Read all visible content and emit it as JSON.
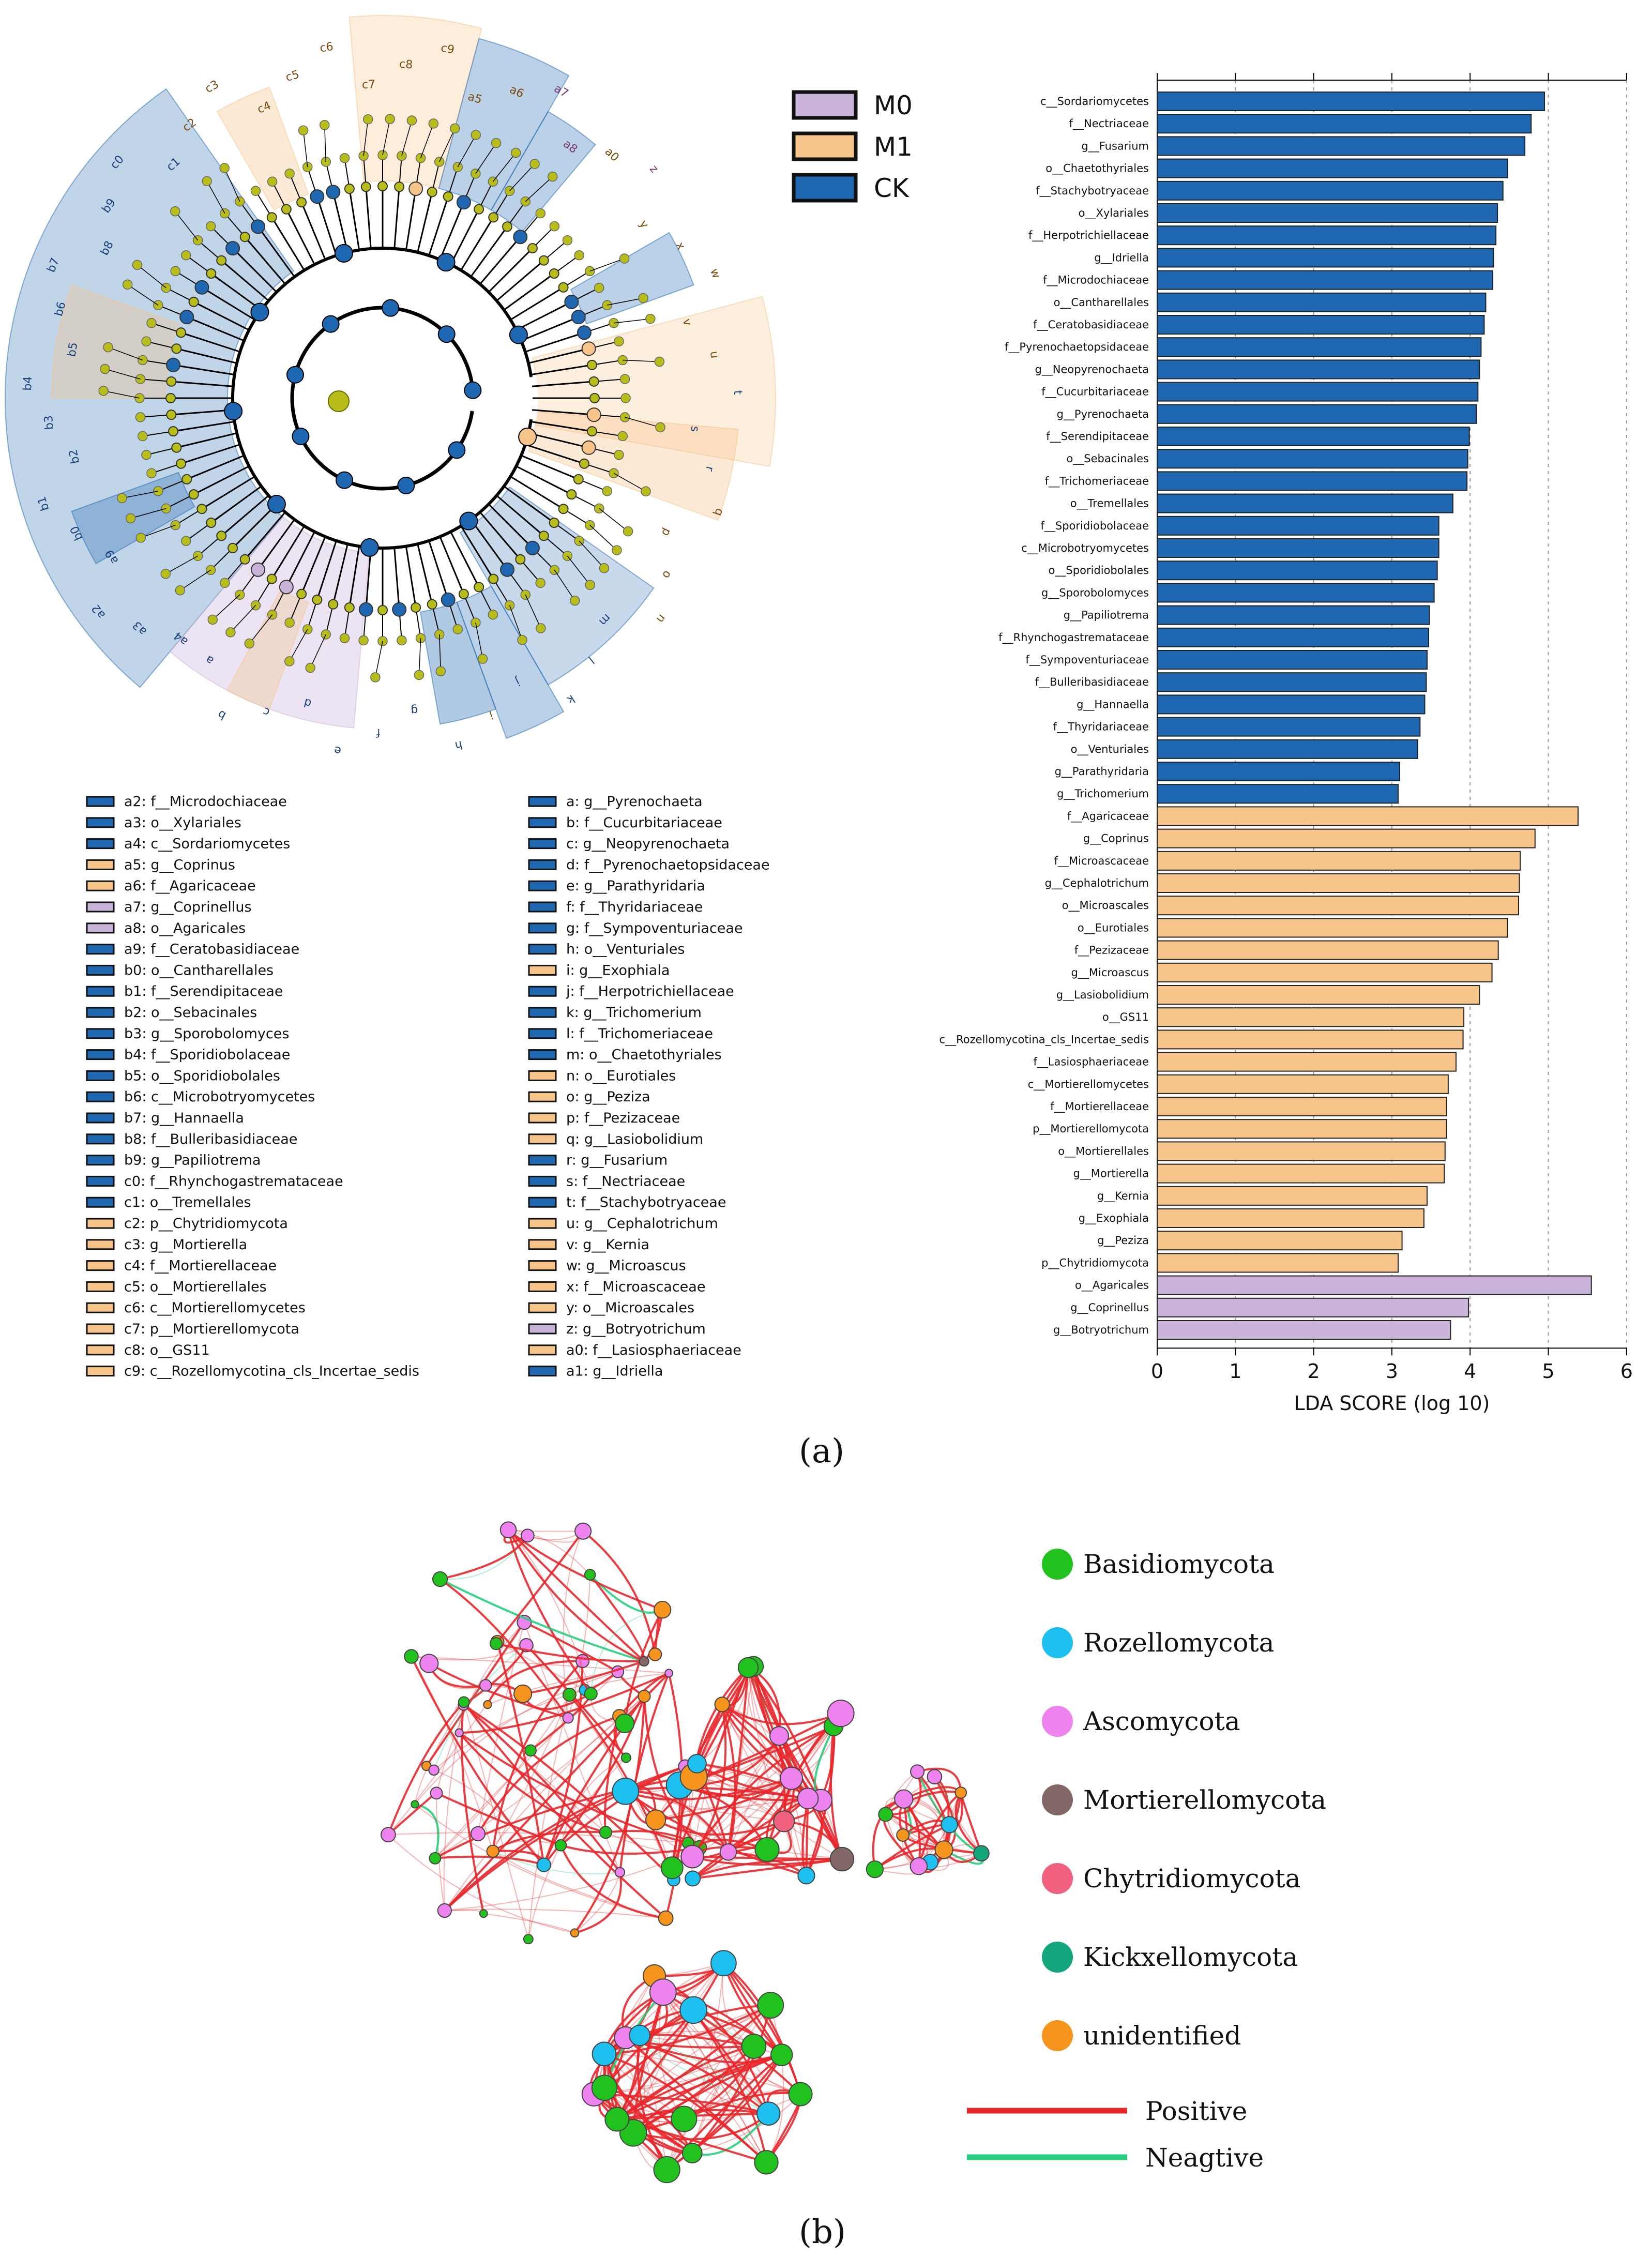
{
  "colors": {
    "M0": "#c9b3d9",
    "M1": "#f7c489",
    "CK": "#1f67b0",
    "node": "#b8bd1a"
  },
  "panel_a": {
    "caption": "(a)",
    "legend_groups": [
      {
        "key": "M0",
        "label": "M0"
      },
      {
        "key": "M1",
        "label": "M1"
      },
      {
        "key": "CK",
        "label": "CK"
      }
    ],
    "cladogram_legend_left": [
      {
        "label": "a2: f__Microdochiaceae",
        "group": "CK"
      },
      {
        "label": "a3: o__Xylariales",
        "group": "CK"
      },
      {
        "label": "a4: c__Sordariomycetes",
        "group": "CK"
      },
      {
        "label": "a5: g__Coprinus",
        "group": "M1"
      },
      {
        "label": "a6: f__Agaricaceae",
        "group": "M1"
      },
      {
        "label": "a7: g__Coprinellus",
        "group": "M0"
      },
      {
        "label": "a8: o__Agaricales",
        "group": "M0"
      },
      {
        "label": "a9: f__Ceratobasidiaceae",
        "group": "CK"
      },
      {
        "label": "b0: o__Cantharellales",
        "group": "CK"
      },
      {
        "label": "b1: f__Serendipitaceae",
        "group": "CK"
      },
      {
        "label": "b2: o__Sebacinales",
        "group": "CK"
      },
      {
        "label": "b3: g__Sporobolomyces",
        "group": "CK"
      },
      {
        "label": "b4: f__Sporidiobolaceae",
        "group": "CK"
      },
      {
        "label": "b5: o__Sporidiobolales",
        "group": "CK"
      },
      {
        "label": "b6: c__Microbotryomycetes",
        "group": "CK"
      },
      {
        "label": "b7: g__Hannaella",
        "group": "CK"
      },
      {
        "label": "b8: f__Bulleribasidiaceae",
        "group": "CK"
      },
      {
        "label": "b9: g__Papiliotrema",
        "group": "CK"
      },
      {
        "label": "c0: f__Rhynchogastremataceae",
        "group": "CK"
      },
      {
        "label": "c1: o__Tremellales",
        "group": "CK"
      },
      {
        "label": "c2: p__Chytridiomycota",
        "group": "M1"
      },
      {
        "label": "c3: g__Mortierella",
        "group": "M1"
      },
      {
        "label": "c4: f__Mortierellaceae",
        "group": "M1"
      },
      {
        "label": "c5: o__Mortierellales",
        "group": "M1"
      },
      {
        "label": "c6: c__Mortierellomycetes",
        "group": "M1"
      },
      {
        "label": "c7: p__Mortierellomycota",
        "group": "M1"
      },
      {
        "label": "c8: o__GS11",
        "group": "M1"
      },
      {
        "label": "c9: c__Rozellomycotina_cls_Incertae_sedis",
        "group": "M1"
      }
    ],
    "cladogram_legend_right": [
      {
        "label": "a: g__Pyrenochaeta",
        "group": "CK"
      },
      {
        "label": "b: f__Cucurbitariaceae",
        "group": "CK"
      },
      {
        "label": "c: g__Neopyrenochaeta",
        "group": "CK"
      },
      {
        "label": "d: f__Pyrenochaetopsidaceae",
        "group": "CK"
      },
      {
        "label": "e: g__Parathyridaria",
        "group": "CK"
      },
      {
        "label": "f: f__Thyridariaceae",
        "group": "CK"
      },
      {
        "label": "g: f__Sympoventuriaceae",
        "group": "CK"
      },
      {
        "label": "h: o__Venturiales",
        "group": "CK"
      },
      {
        "label": "i: g__Exophiala",
        "group": "M1"
      },
      {
        "label": "j: f__Herpotrichiellaceae",
        "group": "CK"
      },
      {
        "label": "k: g__Trichomerium",
        "group": "CK"
      },
      {
        "label": "l: f__Trichomeriaceae",
        "group": "CK"
      },
      {
        "label": "m: o__Chaetothyriales",
        "group": "CK"
      },
      {
        "label": "n: o__Eurotiales",
        "group": "M1"
      },
      {
        "label": "o: g__Peziza",
        "group": "M1"
      },
      {
        "label": "p: f__Pezizaceae",
        "group": "M1"
      },
      {
        "label": "q: g__Lasiobolidium",
        "group": "M1"
      },
      {
        "label": "r: g__Fusarium",
        "group": "CK"
      },
      {
        "label": "s: f__Nectriaceae",
        "group": "CK"
      },
      {
        "label": "t: f__Stachybotryaceae",
        "group": "CK"
      },
      {
        "label": "u: g__Cephalotrichum",
        "group": "M1"
      },
      {
        "label": "v: g__Kernia",
        "group": "M1"
      },
      {
        "label": "w: g__Microascus",
        "group": "M1"
      },
      {
        "label": "x: f__Microascaceae",
        "group": "M1"
      },
      {
        "label": "y: o__Microascales",
        "group": "M1"
      },
      {
        "label": "z: g__Botryotrichum",
        "group": "M0"
      },
      {
        "label": "a0: f__Lasiosphaeriaceae",
        "group": "M1"
      },
      {
        "label": "a1: g__Idriella",
        "group": "CK"
      }
    ],
    "cladogram_sector_labels": [
      {
        "text": "a4",
        "group": "CK"
      },
      {
        "text": "a3",
        "group": "CK"
      },
      {
        "text": "a2",
        "group": "CK"
      },
      {
        "text": "a9",
        "group": "CK"
      },
      {
        "text": "b0",
        "group": "CK"
      },
      {
        "text": "b1",
        "group": "CK"
      },
      {
        "text": "b2",
        "group": "CK"
      },
      {
        "text": "b3",
        "group": "CK"
      },
      {
        "text": "b4",
        "group": "CK"
      },
      {
        "text": "b5",
        "group": "CK"
      },
      {
        "text": "b6",
        "group": "CK"
      },
      {
        "text": "b7",
        "group": "CK"
      },
      {
        "text": "b8",
        "group": "CK"
      },
      {
        "text": "b9",
        "group": "CK"
      },
      {
        "text": "c0",
        "group": "CK"
      },
      {
        "text": "c1",
        "group": "CK"
      },
      {
        "text": "c2",
        "group": "M1"
      },
      {
        "text": "c3",
        "group": "M1"
      },
      {
        "text": "c4",
        "group": "M1"
      },
      {
        "text": "c5",
        "group": "M1"
      },
      {
        "text": "c6",
        "group": "M1"
      },
      {
        "text": "c7",
        "group": "M1"
      },
      {
        "text": "c8",
        "group": "M1"
      },
      {
        "text": "c9",
        "group": "M1"
      },
      {
        "text": "a5",
        "group": "M1"
      },
      {
        "text": "a6",
        "group": "M1"
      },
      {
        "text": "a7",
        "group": "M0"
      },
      {
        "text": "a8",
        "group": "M0"
      },
      {
        "text": "a0",
        "group": "M1"
      },
      {
        "text": "z",
        "group": "M0"
      },
      {
        "text": "y",
        "group": "M1"
      },
      {
        "text": "x",
        "group": "M1"
      },
      {
        "text": "w",
        "group": "M1"
      },
      {
        "text": "v",
        "group": "M1"
      },
      {
        "text": "u",
        "group": "M1"
      },
      {
        "text": "t",
        "group": "CK"
      },
      {
        "text": "s",
        "group": "CK"
      },
      {
        "text": "r",
        "group": "CK"
      },
      {
        "text": "q",
        "group": "M1"
      },
      {
        "text": "p",
        "group": "M1"
      },
      {
        "text": "o",
        "group": "M1"
      },
      {
        "text": "n",
        "group": "M1"
      },
      {
        "text": "m",
        "group": "CK"
      },
      {
        "text": "l",
        "group": "CK"
      },
      {
        "text": "k",
        "group": "CK"
      },
      {
        "text": "j",
        "group": "CK"
      },
      {
        "text": "i",
        "group": "M1"
      },
      {
        "text": "h",
        "group": "CK"
      },
      {
        "text": "g",
        "group": "CK"
      },
      {
        "text": "f",
        "group": "CK"
      },
      {
        "text": "e",
        "group": "CK"
      },
      {
        "text": "d",
        "group": "CK"
      },
      {
        "text": "c",
        "group": "CK"
      },
      {
        "text": "b",
        "group": "CK"
      },
      {
        "text": "a",
        "group": "CK"
      }
    ]
  },
  "chart_data": [
    {
      "type": "bar",
      "orientation": "horizontal",
      "xlabel": "LDA SCORE (log 10)",
      "xlim": [
        0,
        6
      ],
      "xticks": [
        0,
        1,
        2,
        3,
        4,
        5,
        6
      ],
      "categories": [
        "c__Sordariomycetes",
        "f__Nectriaceae",
        "g__Fusarium",
        "o__Chaetothyriales",
        "f__Stachybotryaceae",
        "o__Xylariales",
        "f__Herpotrichiellaceae",
        "g__Idriella",
        "f__Microdochiaceae",
        "o__Cantharellales",
        "f__Ceratobasidiaceae",
        "f__Pyrenochaetopsidaceae",
        "g__Neopyrenochaeta",
        "f__Cucurbitariaceae",
        "g__Pyrenochaeta",
        "f__Serendipitaceae",
        "o__Sebacinales",
        "f__Trichomeriaceae",
        "o__Tremellales",
        "f__Sporidiobolaceae",
        "c__Microbotryomycetes",
        "o__Sporidiobolales",
        "g__Sporobolomyces",
        "g__Papiliotrema",
        "f__Rhynchogastremataceae",
        "f__Sympoventuriaceae",
        "f__Bulleribasidiaceae",
        "g__Hannaella",
        "f__Thyridariaceae",
        "o__Venturiales",
        "g__Parathyridaria",
        "g__Trichomerium",
        "f__Agaricaceae",
        "g__Coprinus",
        "f__Microascaceae",
        "g__Cephalotrichum",
        "o__Microascales",
        "o__Eurotiales",
        "f__Pezizaceae",
        "g__Microascus",
        "g__Lasiobolidium",
        "o__GS11",
        "c__Rozellomycotina_cls_Incertae_sedis",
        "f__Lasiosphaeriaceae",
        "c__Mortierellomycetes",
        "f__Mortierellaceae",
        "p__Mortierellomycota",
        "o__Mortierellales",
        "g__Mortierella",
        "g__Kernia",
        "g__Exophiala",
        "g__Peziza",
        "p__Chytridiomycota",
        "o__Agaricales",
        "g__Coprinellus",
        "g__Botryotrichum"
      ],
      "values": [
        4.95,
        4.78,
        4.7,
        4.48,
        4.42,
        4.35,
        4.33,
        4.3,
        4.29,
        4.2,
        4.18,
        4.14,
        4.12,
        4.1,
        4.08,
        3.99,
        3.97,
        3.96,
        3.78,
        3.6,
        3.6,
        3.58,
        3.54,
        3.48,
        3.47,
        3.45,
        3.44,
        3.42,
        3.36,
        3.33,
        3.1,
        3.08,
        5.38,
        4.83,
        4.64,
        4.63,
        4.62,
        4.48,
        4.36,
        4.28,
        4.12,
        3.92,
        3.91,
        3.82,
        3.72,
        3.7,
        3.7,
        3.68,
        3.67,
        3.45,
        3.41,
        3.13,
        3.08,
        5.55,
        3.98,
        3.75
      ],
      "groups": [
        "CK",
        "CK",
        "CK",
        "CK",
        "CK",
        "CK",
        "CK",
        "CK",
        "CK",
        "CK",
        "CK",
        "CK",
        "CK",
        "CK",
        "CK",
        "CK",
        "CK",
        "CK",
        "CK",
        "CK",
        "CK",
        "CK",
        "CK",
        "CK",
        "CK",
        "CK",
        "CK",
        "CK",
        "CK",
        "CK",
        "CK",
        "CK",
        "M1",
        "M1",
        "M1",
        "M1",
        "M1",
        "M1",
        "M1",
        "M1",
        "M1",
        "M1",
        "M1",
        "M1",
        "M1",
        "M1",
        "M1",
        "M1",
        "M1",
        "M1",
        "M1",
        "M1",
        "M1",
        "M0",
        "M0",
        "M0"
      ]
    },
    {
      "type": "network",
      "caption": "(b)",
      "legend": [
        {
          "label": "Basidiomycota",
          "color": "#22c21e"
        },
        {
          "label": "Rozellomycota",
          "color": "#1ec0f0"
        },
        {
          "label": "Ascomycota",
          "color": "#ee82ee"
        },
        {
          "label": "Mortierellomycota",
          "color": "#836766"
        },
        {
          "label": "Chytridiomycota",
          "color": "#f0617f"
        },
        {
          "label": "Kickxellomycota",
          "color": "#13a57c"
        },
        {
          "label": "unidentified",
          "color": "#f7941d"
        }
      ],
      "edge_legend": [
        {
          "label": "Positive",
          "color": "#e8272b"
        },
        {
          "label": "Neagtive",
          "color": "#25d07d"
        }
      ]
    }
  ]
}
